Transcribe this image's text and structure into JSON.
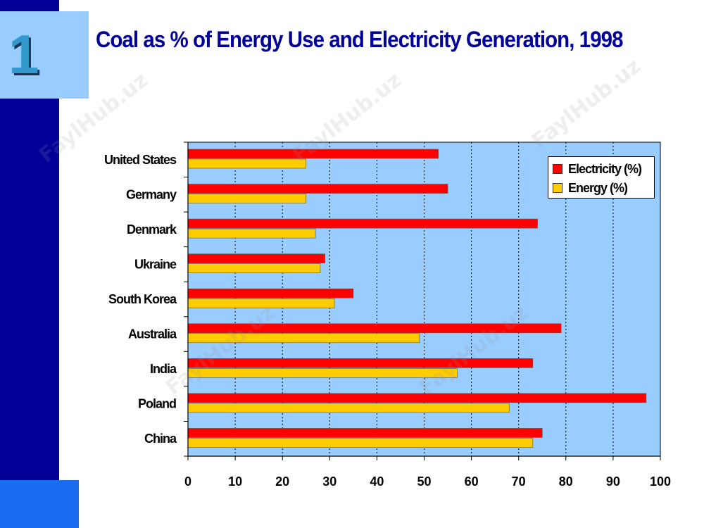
{
  "slide": {
    "number": "1",
    "title": "Coal as % of Energy Use and Electricity Generation, 1998",
    "watermark_text": "FaylHub.uz"
  },
  "colors": {
    "band": "#000099",
    "tile": "#99ccff",
    "plot_bg": "#99ccff",
    "electricity": "#ff0000",
    "energy": "#ffcc00"
  },
  "chart_data": {
    "type": "bar",
    "orientation": "horizontal",
    "title": "Coal as % of Energy Use and Electricity Generation, 1998",
    "categories": [
      "United States",
      "Germany",
      "Denmark",
      "Ukraine",
      "South Korea",
      "Australia",
      "India",
      "Poland",
      "China"
    ],
    "series": [
      {
        "name": "Electricity (%)",
        "color": "#ff0000",
        "values": [
          53,
          55,
          74,
          29,
          35,
          79,
          73,
          97,
          75
        ]
      },
      {
        "name": "Energy (%)",
        "color": "#ffcc00",
        "values": [
          25,
          25,
          27,
          28,
          31,
          49,
          57,
          68,
          73
        ]
      }
    ],
    "xlim": [
      0,
      100
    ],
    "xticks": [
      0,
      10,
      20,
      30,
      40,
      50,
      60,
      70,
      80,
      90,
      100
    ],
    "grid": "vertical dotted",
    "legend": "top-right"
  }
}
